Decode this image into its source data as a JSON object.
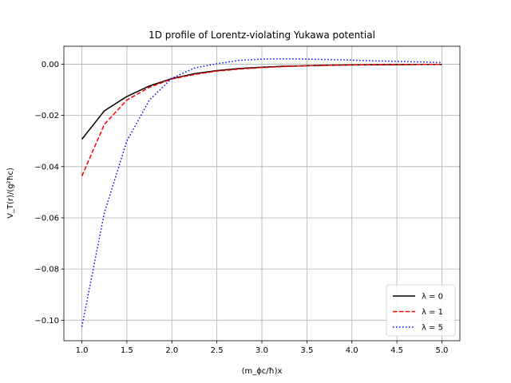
{
  "chart_data": {
    "type": "line",
    "title": "1D profile of Lorentz-violating Yukawa potential",
    "xlabel": "(m_ϕc/ħ)x",
    "ylabel": "V_T(r)/(g²ħc)",
    "xlim": [
      0.8,
      5.2
    ],
    "ylim": [
      -0.108,
      0.007
    ],
    "xticks": [
      1.0,
      1.5,
      2.0,
      2.5,
      3.0,
      3.5,
      4.0,
      4.5,
      5.0
    ],
    "xtick_labels": [
      "1.0",
      "1.5",
      "2.0",
      "2.5",
      "3.0",
      "3.5",
      "4.0",
      "4.5",
      "5.0"
    ],
    "yticks": [
      -0.1,
      -0.08,
      -0.06,
      -0.04,
      -0.02,
      0.0
    ],
    "ytick_labels": [
      "−0.10",
      "−0.08",
      "−0.06",
      "−0.04",
      "−0.02",
      "0.00"
    ],
    "grid": true,
    "legend_position": "bottom-right",
    "x": [
      1.0,
      1.25,
      1.5,
      1.75,
      2.0,
      2.25,
      2.5,
      2.75,
      3.0,
      3.25,
      3.5,
      3.75,
      4.0,
      4.25,
      4.5,
      4.75,
      5.0
    ],
    "series": [
      {
        "name": "λ = 0",
        "color": "#000000",
        "style": "solid",
        "values": [
          -0.0293,
          -0.0182,
          -0.0126,
          -0.0085,
          -0.0056,
          -0.0037,
          -0.0025,
          -0.0017,
          -0.0012,
          -0.0008,
          -0.0006,
          -0.0004,
          -0.0003,
          -0.0002,
          -0.00015,
          -0.0001,
          -7e-05
        ]
      },
      {
        "name": "λ = 1",
        "color": "#ff0000",
        "style": "dashed",
        "values": [
          -0.0437,
          -0.0235,
          -0.014,
          -0.009,
          -0.0058,
          -0.004,
          -0.0027,
          -0.0019,
          -0.0013,
          -0.0009,
          -0.0006,
          -0.0004,
          -0.0003,
          -0.0002,
          -0.00015,
          -0.0001,
          -7e-05
        ]
      },
      {
        "name": "λ = 5",
        "color": "#0000ff",
        "style": "dotted",
        "values": [
          -0.1025,
          -0.058,
          -0.03,
          -0.014,
          -0.0055,
          -0.0015,
          0.0002,
          0.0015,
          0.002,
          0.0021,
          0.002,
          0.0018,
          0.0016,
          0.0013,
          0.0011,
          0.0009,
          0.0006
        ]
      }
    ]
  }
}
